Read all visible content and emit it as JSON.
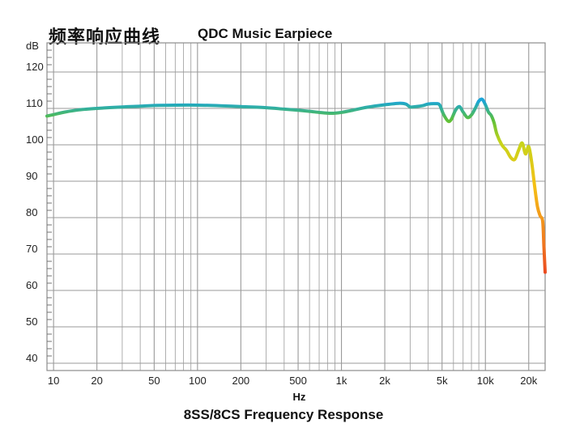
{
  "chart_data": {
    "type": "line",
    "title": "频率响应曲线",
    "subtitle": "QDC Music Earpiece",
    "caption": "8SS/8CS Frequency Response",
    "xlabel": "Hz",
    "ylabel": "dB",
    "x_scale": "log",
    "xlim": [
      9,
      26000
    ],
    "ylim": [
      38,
      128
    ],
    "grid": true,
    "x_ticks": [
      {
        "value": 10,
        "label": "10"
      },
      {
        "value": 20,
        "label": "20"
      },
      {
        "value": 50,
        "label": "50"
      },
      {
        "value": 100,
        "label": "100"
      },
      {
        "value": 200,
        "label": "200"
      },
      {
        "value": 500,
        "label": "500"
      },
      {
        "value": 1000,
        "label": "1k"
      },
      {
        "value": 2000,
        "label": "2k"
      },
      {
        "value": 5000,
        "label": "5k"
      },
      {
        "value": 10000,
        "label": "10k"
      },
      {
        "value": 20000,
        "label": "20k"
      }
    ],
    "y_ticks": [
      {
        "value": 40,
        "label": "40"
      },
      {
        "value": 50,
        "label": "50"
      },
      {
        "value": 60,
        "label": "60"
      },
      {
        "value": 70,
        "label": "70"
      },
      {
        "value": 80,
        "label": "80"
      },
      {
        "value": 90,
        "label": "90"
      },
      {
        "value": 100,
        "label": "100"
      },
      {
        "value": 110,
        "label": "110"
      },
      {
        "value": 120,
        "label": "120"
      }
    ],
    "series": [
      {
        "points": [
          [
            9,
            107.9
          ],
          [
            10,
            108.3
          ],
          [
            12,
            109.0
          ],
          [
            15,
            109.6
          ],
          [
            20,
            110.0
          ],
          [
            30,
            110.4
          ],
          [
            40,
            110.6
          ],
          [
            50,
            110.8
          ],
          [
            70,
            110.9
          ],
          [
            100,
            110.9
          ],
          [
            150,
            110.7
          ],
          [
            200,
            110.5
          ],
          [
            300,
            110.2
          ],
          [
            400,
            109.8
          ],
          [
            500,
            109.5
          ],
          [
            600,
            109.2
          ],
          [
            700,
            108.9
          ],
          [
            800,
            108.7
          ],
          [
            900,
            108.7
          ],
          [
            1000,
            108.9
          ],
          [
            1200,
            109.5
          ],
          [
            1500,
            110.3
          ],
          [
            2000,
            111.0
          ],
          [
            2500,
            111.4
          ],
          [
            2800,
            111.2
          ],
          [
            3000,
            110.4
          ],
          [
            3300,
            110.5
          ],
          [
            3700,
            110.8
          ],
          [
            4000,
            111.2
          ],
          [
            4500,
            111.3
          ],
          [
            4800,
            111.0
          ],
          [
            5100,
            108.5
          ],
          [
            5500,
            106.5
          ],
          [
            5800,
            107.0
          ],
          [
            6200,
            109.5
          ],
          [
            6600,
            110.5
          ],
          [
            7000,
            109.0
          ],
          [
            7500,
            107.5
          ],
          [
            8000,
            108.2
          ],
          [
            8500,
            110.0
          ],
          [
            9000,
            112.0
          ],
          [
            9500,
            112.5
          ],
          [
            10000,
            111.0
          ],
          [
            10500,
            109.0
          ],
          [
            11000,
            108.0
          ],
          [
            11500,
            106.0
          ],
          [
            12000,
            103.0
          ],
          [
            13000,
            100.0
          ],
          [
            14000,
            98.5
          ],
          [
            15000,
            96.5
          ],
          [
            16000,
            96.0
          ],
          [
            17000,
            98.5
          ],
          [
            18000,
            100.5
          ],
          [
            19000,
            97.5
          ],
          [
            20000,
            99.5
          ],
          [
            21000,
            95.0
          ],
          [
            22000,
            88.5
          ],
          [
            23000,
            83.0
          ],
          [
            24000,
            80.5
          ],
          [
            25000,
            79.0
          ],
          [
            25500,
            72.0
          ],
          [
            26000,
            65.0
          ]
        ]
      }
    ],
    "colors": {
      "gradient": [
        "#e8301f",
        "#f07820",
        "#f5c016",
        "#c8d41a",
        "#5cc03a",
        "#1aa5d8"
      ],
      "grid": "#9a9a9a",
      "frame": "#8c8c8c"
    }
  }
}
